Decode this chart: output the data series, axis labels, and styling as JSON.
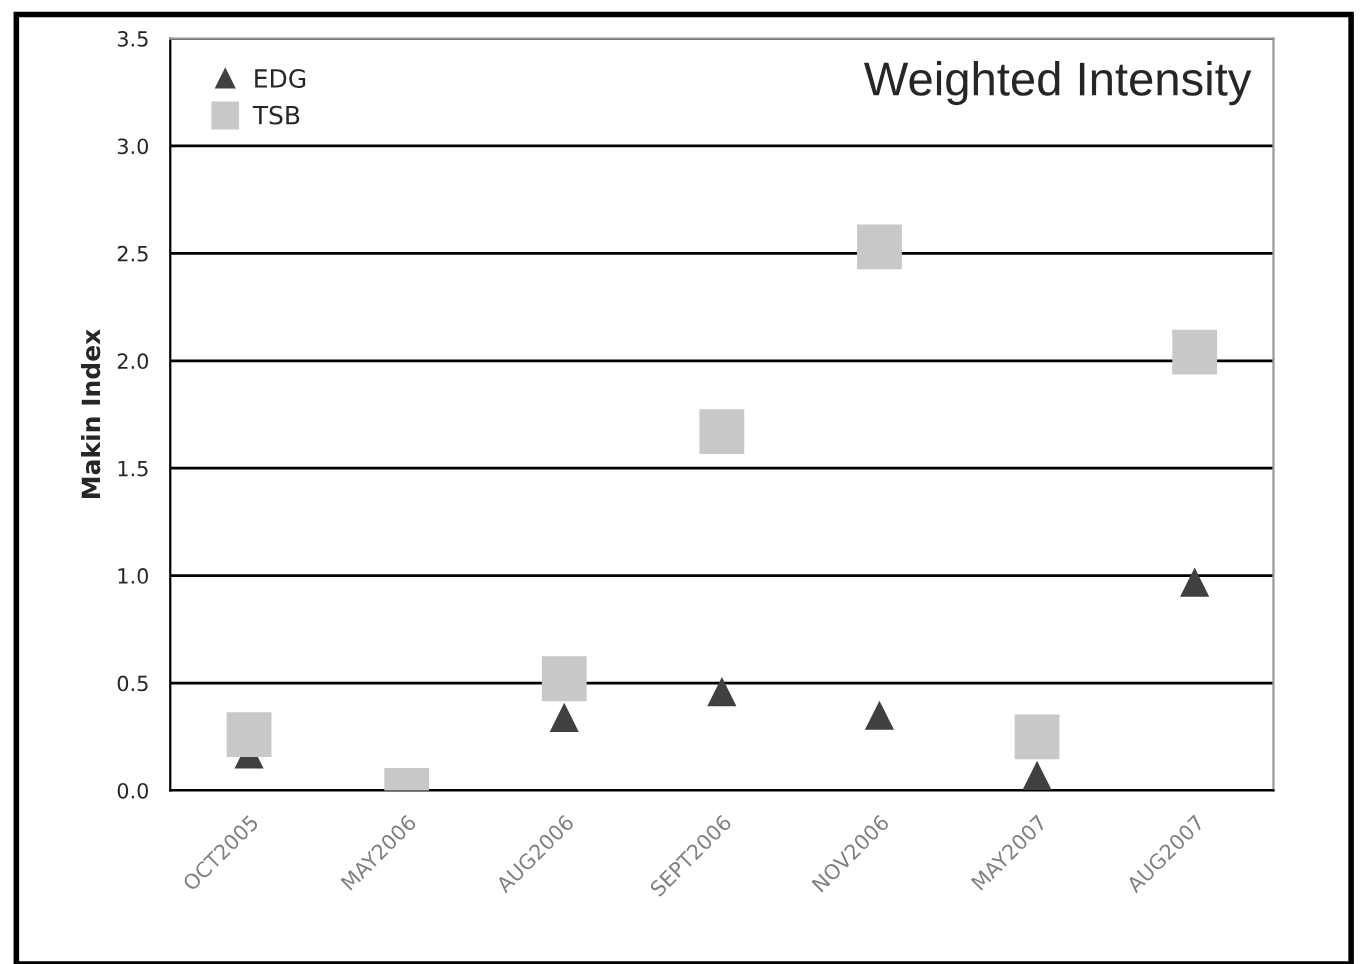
{
  "chart_data": {
    "type": "scatter",
    "ylabel": "Makin Index",
    "categories": [
      "OCT2005",
      "MAY2006",
      "AUG2006",
      "SEPT2006",
      "NOV2006",
      "MAY2007",
      "AUG2007"
    ],
    "series": [
      {
        "name": "EDG",
        "color": "#404040",
        "marker": "triangle",
        "values": [
          0.17,
          null,
          0.34,
          0.46,
          0.35,
          0.07,
          0.97
        ]
      },
      {
        "name": "TSB",
        "color": "#c8c8c8",
        "marker": "square",
        "values": [
          0.26,
          0.0,
          0.52,
          1.67,
          2.53,
          0.25,
          2.04
        ]
      }
    ],
    "ylim": [
      0,
      3.5
    ],
    "yticks": [
      {
        "value": 0,
        "label": "0.0"
      },
      {
        "value": 0.5,
        "label": "0.5"
      },
      {
        "value": 1,
        "label": "1.0"
      },
      {
        "value": 1.5,
        "label": "1.5"
      },
      {
        "value": 2,
        "label": "2.0"
      },
      {
        "value": 2.5,
        "label": "2.5"
      },
      {
        "value": 3,
        "label": "3.0"
      },
      {
        "value": 3.5,
        "label": "3.5"
      }
    ],
    "grid": "y",
    "legend": "top left",
    "annotations": [
      "Weighted Intensity"
    ]
  }
}
